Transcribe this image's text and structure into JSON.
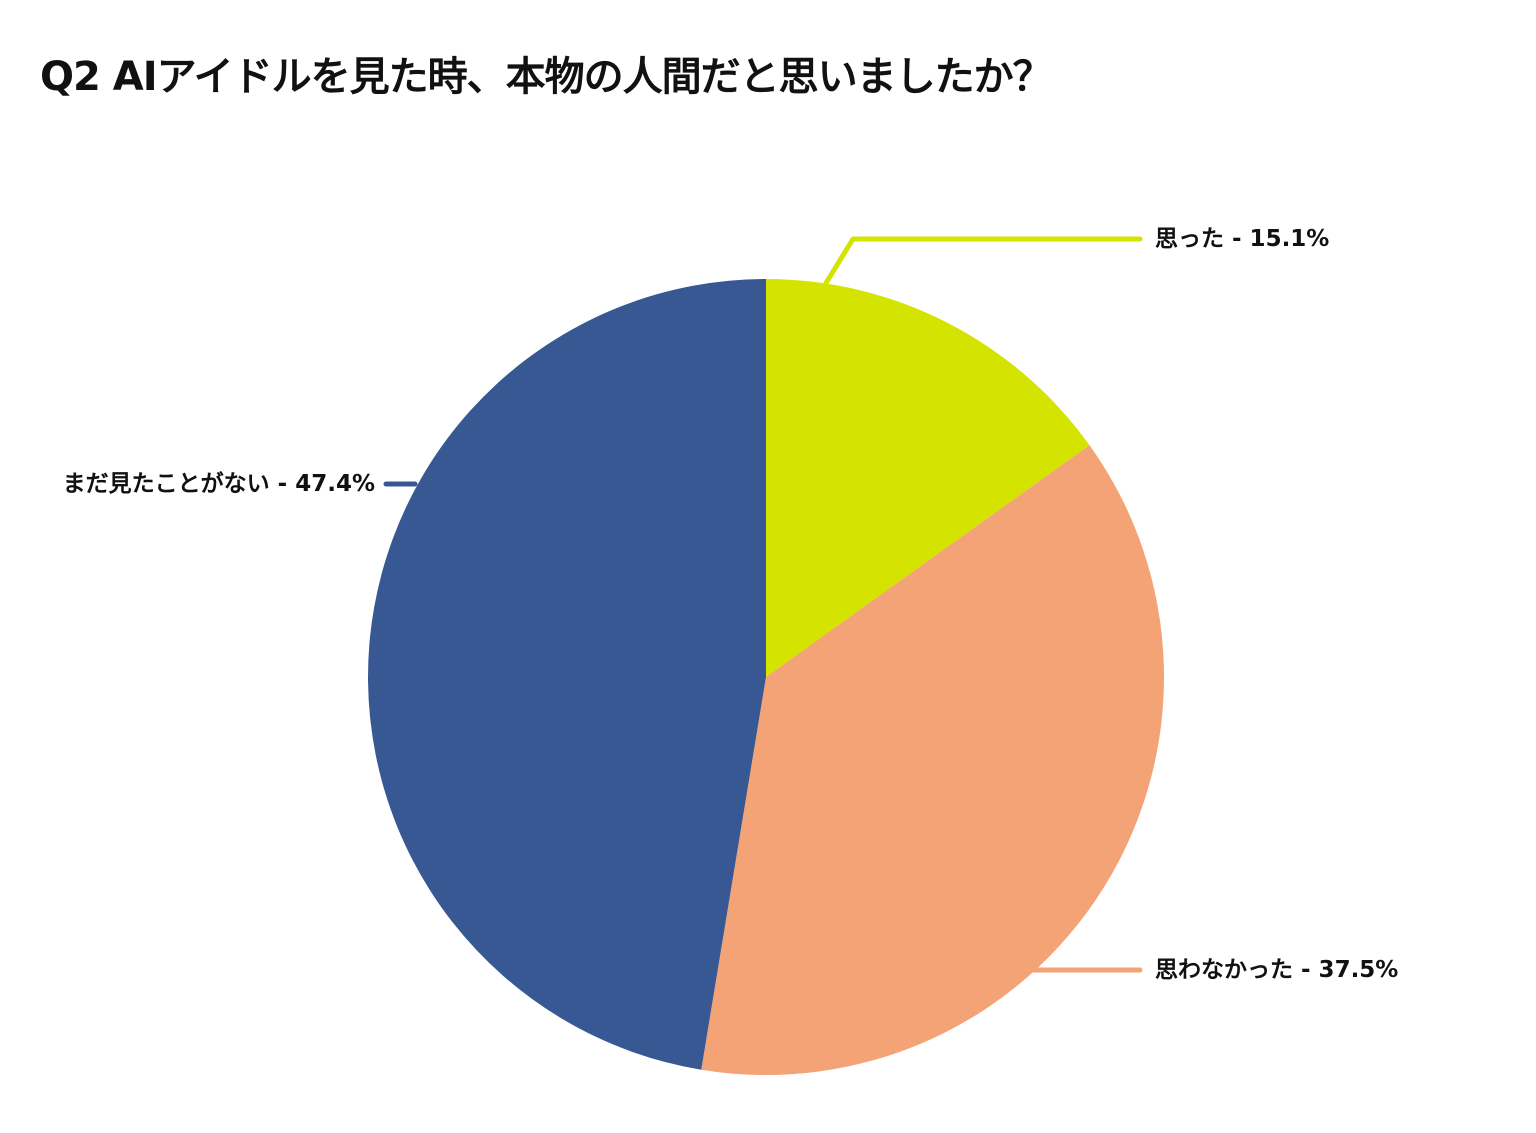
{
  "chart_data": {
    "type": "pie",
    "title": "Q2 AIアイドルを見た時、本物の人間だと思いましたか？",
    "start_angle": "top",
    "direction": "clockwise",
    "slices": [
      {
        "label": "思った",
        "value": 15.1,
        "color": "#D4E300",
        "label_side": "right"
      },
      {
        "label": "思わなかった",
        "value": 37.5,
        "color": "#F3A375",
        "label_side": "right"
      },
      {
        "label": "まだ見たことがない",
        "value": 47.4,
        "color": "#375893",
        "label_side": "left"
      }
    ],
    "value_suffix": "%"
  }
}
